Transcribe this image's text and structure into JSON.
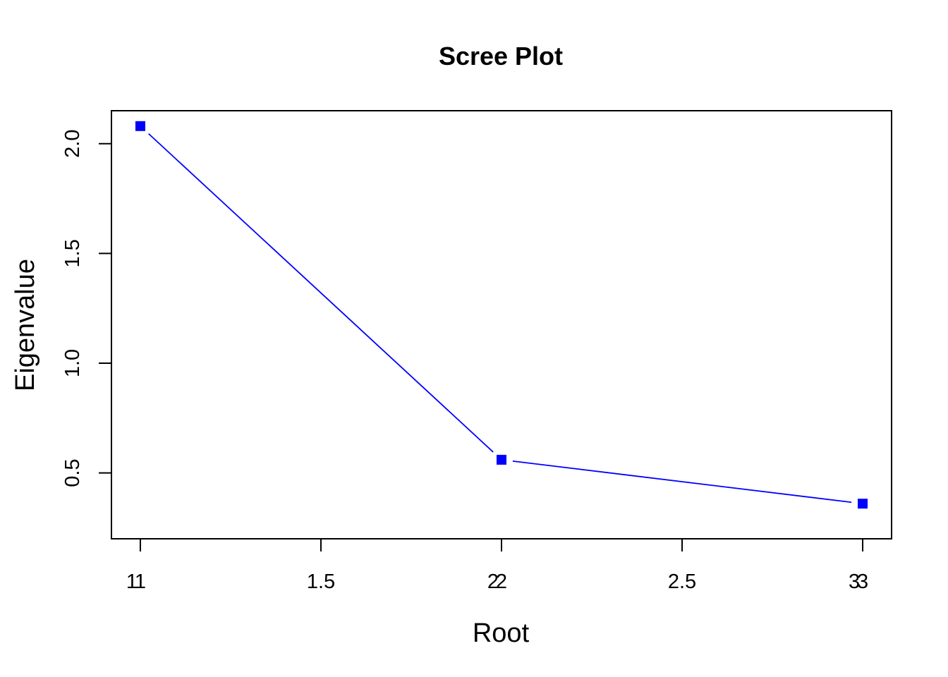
{
  "chart_data": {
    "type": "line",
    "title": "Scree Plot",
    "xlabel": "Root",
    "ylabel": "Eigenvalue",
    "xlim": [
      0.92,
      3.08
    ],
    "ylim": [
      0.2,
      2.15
    ],
    "x": [
      1,
      2,
      3
    ],
    "series": [
      {
        "values": [
          2.08,
          0.56,
          0.36
        ]
      }
    ],
    "x_ticks": [
      1,
      1.5,
      2,
      2.5,
      3
    ],
    "x_tick_labels": [
      "1",
      "1.5",
      "2",
      "2.5",
      "3"
    ],
    "x_overprint_labels": [
      {
        "x": 1,
        "label": "1"
      },
      {
        "x": 2,
        "label": "2"
      },
      {
        "x": 3,
        "label": "3"
      }
    ],
    "y_ticks": [
      0.5,
      1.0,
      1.5,
      2.0
    ],
    "y_tick_labels": [
      "0.5",
      "1.0",
      "1.5",
      "2.0"
    ],
    "marker": "square",
    "grid": false,
    "legend": "none",
    "color": "#0000ff"
  }
}
